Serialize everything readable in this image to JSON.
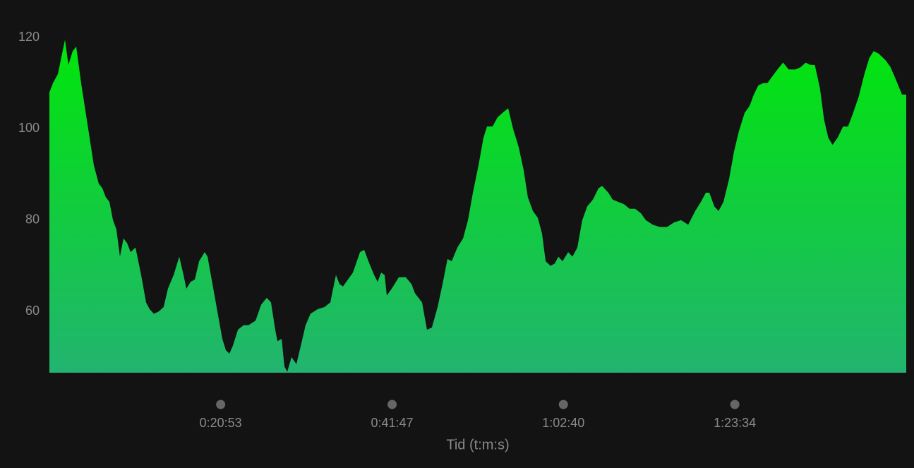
{
  "chart_data": {
    "type": "area",
    "x_label": "Tid (t:m:s)",
    "gradient": [
      "#00e60a",
      "#22b470"
    ],
    "xlim": [
      0,
      6268
    ],
    "ylim": [
      46.6,
      123.1
    ],
    "yticks": [
      60,
      80,
      100,
      120
    ],
    "xticks": [
      {
        "value": 1253,
        "label": "0:20:53"
      },
      {
        "value": 2507,
        "label": "0:41:47"
      },
      {
        "value": 3760,
        "label": "1:02:40"
      },
      {
        "value": 5014,
        "label": "1:23:34"
      }
    ],
    "x": [
      0,
      26,
      62,
      114,
      139,
      170,
      196,
      232,
      284,
      325,
      361,
      387,
      413,
      439,
      465,
      490,
      516,
      542,
      568,
      594,
      630,
      671,
      707,
      733,
      764,
      800,
      836,
      867,
      909,
      950,
      981,
      1002,
      1033,
      1064,
      1095,
      1136,
      1157,
      1187,
      1229,
      1265,
      1291,
      1317,
      1342,
      1379,
      1420,
      1456,
      1508,
      1549,
      1590,
      1621,
      1652,
      1668,
      1699,
      1719,
      1740,
      1771,
      1807,
      1843,
      1874,
      1910,
      1962,
      2014,
      2055,
      2096,
      2122,
      2148,
      2184,
      2220,
      2272,
      2303,
      2334,
      2375,
      2401,
      2427,
      2452,
      2468,
      2504,
      2556,
      2607,
      2649,
      2674,
      2726,
      2762,
      2798,
      2840,
      2876,
      2912,
      2943,
      2984,
      3026,
      3062,
      3098,
      3139,
      3175,
      3201,
      3242,
      3278,
      3315,
      3356,
      3392,
      3433,
      3469,
      3500,
      3537,
      3573,
      3604,
      3630,
      3666,
      3697,
      3723,
      3754,
      3795,
      3826,
      3862,
      3898,
      3934,
      3976,
      4017,
      4043,
      4089,
      4120,
      4161,
      4203,
      4244,
      4285,
      4327,
      4363,
      4414,
      4466,
      4518,
      4569,
      4621,
      4673,
      4724,
      4766,
      4802,
      4828,
      4864,
      4895,
      4931,
      4972,
      5008,
      5044,
      5086,
      5122,
      5153,
      5186,
      5222,
      5253,
      5289,
      5326,
      5367,
      5408,
      5460,
      5496,
      5533,
      5564,
      5599,
      5636,
      5667,
      5698,
      5729,
      5765,
      5806,
      5842,
      5874,
      5920,
      5962,
      5998,
      6029,
      6065,
      6117,
      6153,
      6196,
      6237,
      6268
    ],
    "values": [
      108,
      110,
      112,
      119.5,
      114,
      117,
      118,
      110,
      100,
      92,
      88,
      87,
      85,
      84,
      80,
      78,
      72,
      76,
      75,
      73,
      74,
      68,
      62,
      60.5,
      59.5,
      60,
      61,
      65,
      68,
      72,
      68,
      65,
      66.5,
      67,
      71,
      73,
      72,
      67,
      60,
      54,
      51.5,
      50.8,
      52.5,
      56,
      57,
      57,
      58,
      61.5,
      63,
      62,
      56,
      53.5,
      54,
      48,
      46.8,
      50,
      48.5,
      53,
      57,
      59.5,
      60.5,
      61,
      62,
      68,
      66,
      65.5,
      67,
      68.5,
      73,
      73.5,
      71,
      68,
      66.5,
      68.5,
      68,
      63.5,
      65,
      67.5,
      67.5,
      66,
      64,
      62,
      56,
      56.5,
      61,
      66,
      71.5,
      71,
      74,
      76,
      80,
      86,
      92,
      98,
      100.5,
      100.5,
      102.5,
      103.5,
      104.5,
      100,
      96,
      91,
      85,
      82,
      80.5,
      77,
      71,
      70,
      70.5,
      72,
      71,
      73,
      72,
      74,
      80,
      83,
      84.5,
      87,
      87.5,
      86,
      84.5,
      84,
      83.5,
      82.5,
      82.5,
      81.5,
      80,
      79,
      78.5,
      78.5,
      79.5,
      80,
      79,
      82,
      84,
      86,
      86,
      83,
      82,
      84,
      89,
      95,
      99.5,
      103.5,
      105,
      107.5,
      109.5,
      110,
      110,
      111.5,
      113,
      114.5,
      113,
      113,
      113.5,
      114.5,
      114,
      114,
      109,
      102,
      98,
      96.5,
      98,
      100.5,
      100.5,
      103,
      107,
      112,
      115.5,
      117,
      116.5,
      115,
      113.5,
      110.5,
      107.5,
      107.5
    ]
  }
}
